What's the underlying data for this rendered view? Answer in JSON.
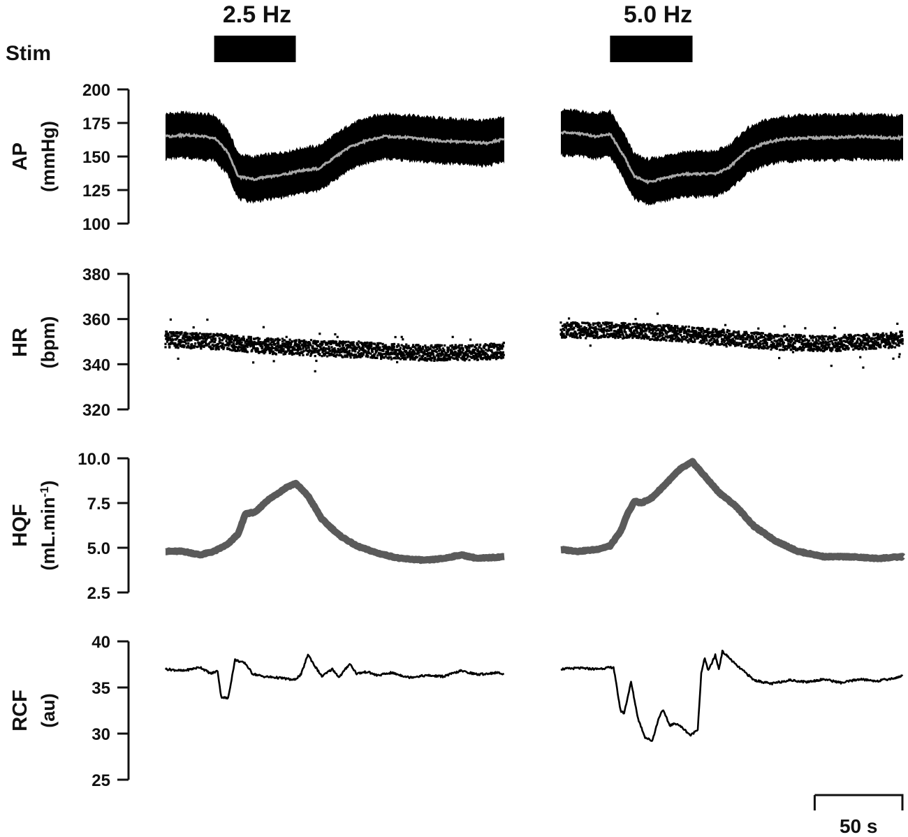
{
  "stim": {
    "label": "Stim",
    "conditions": [
      {
        "label": "2.5 Hz",
        "start_s": 28,
        "end_s": 75
      },
      {
        "label": "5.0 Hz",
        "start_s": 28,
        "end_s": 75
      }
    ]
  },
  "scale_bar": {
    "label": "50 s",
    "seconds": 50
  },
  "chart_data": {
    "type": "line",
    "x_unit": "s",
    "x_range": [
      0,
      195
    ],
    "panels": [
      {
        "id": "ap",
        "title": "AP",
        "unit": "(mmHg)",
        "ylim": [
          100,
          200
        ],
        "yticks": [
          100,
          125,
          150,
          175,
          200
        ],
        "tick_labels": [
          "100",
          "125",
          "150",
          "175",
          "200"
        ],
        "envelope_half_width": 17,
        "series": [
          {
            "condition": "2.5 Hz",
            "x": [
              0,
              12,
              20,
              28,
              36,
              42,
              50,
              60,
              70,
              80,
              88,
              96,
              106,
              116,
              126,
              140,
              155,
              170,
              185,
              195
            ],
            "y": [
              165,
              166,
              165,
              164,
              153,
              135,
              133,
              135,
              137,
              140,
              141,
              148,
              157,
              162,
              165,
              164,
              162,
              161,
              160,
              163
            ]
          },
          {
            "condition": "5.0 Hz",
            "x": [
              0,
              12,
              20,
              28,
              36,
              42,
              50,
              60,
              70,
              80,
              88,
              96,
              106,
              116,
              126,
              140,
              155,
              170,
              185,
              195
            ],
            "y": [
              168,
              167,
              165,
              167,
              150,
              135,
              131,
              134,
              137,
              137,
              137,
              142,
              154,
              160,
              163,
              164,
              164,
              165,
              164,
              164
            ]
          }
        ]
      },
      {
        "id": "hr",
        "title": "HR",
        "unit": "(bpm)",
        "ylim": [
          320,
          380
        ],
        "yticks": [
          320,
          340,
          360,
          380
        ],
        "tick_labels": [
          "320",
          "340",
          "360",
          "380"
        ],
        "series": [
          {
            "condition": "2.5 Hz",
            "x": [
              0,
              30,
              60,
              90,
              120,
              150,
              175,
              195
            ],
            "y": [
              351,
              350,
              348,
              347,
              346,
              345,
              345,
              346
            ]
          },
          {
            "condition": "5.0 Hz",
            "x": [
              0,
              30,
              60,
              90,
              120,
              150,
              175,
              195
            ],
            "y": [
              355,
              355,
              354,
              352,
              350,
              349,
              350,
              351
            ]
          }
        ]
      },
      {
        "id": "hqf",
        "title": "HQF",
        "unit": "(mL.min",
        "unit_sup": "-1",
        "unit_close": ")",
        "ylim": [
          2.5,
          10
        ],
        "yticks": [
          2.5,
          5.0,
          7.5,
          10.0
        ],
        "tick_labels": [
          "2.5",
          "5.0",
          "7.5",
          "10.0"
        ],
        "series": [
          {
            "condition": "2.5 Hz",
            "x": [
              0,
              10,
              20,
              28,
              36,
              42,
              46,
              52,
              58,
              64,
              70,
              75,
              82,
              90,
              100,
              110,
              122,
              135,
              150,
              160,
              170,
              180,
              195
            ],
            "y": [
              4.8,
              4.8,
              4.6,
              4.8,
              5.2,
              5.8,
              6.9,
              7.0,
              7.6,
              8.0,
              8.4,
              8.6,
              7.9,
              6.6,
              5.7,
              5.1,
              4.7,
              4.4,
              4.3,
              4.4,
              4.6,
              4.4,
              4.5
            ]
          },
          {
            "condition": "5.0 Hz",
            "x": [
              0,
              10,
              20,
              28,
              34,
              38,
              42,
              46,
              52,
              60,
              68,
              75,
              82,
              90,
              100,
              110,
              122,
              135,
              150,
              165,
              180,
              195
            ],
            "y": [
              4.9,
              4.8,
              4.9,
              5.1,
              5.9,
              6.9,
              7.6,
              7.5,
              7.8,
              8.6,
              9.4,
              9.8,
              9.0,
              8.1,
              7.3,
              6.2,
              5.4,
              4.8,
              4.5,
              4.5,
              4.4,
              4.5
            ]
          }
        ]
      },
      {
        "id": "rcf",
        "title": "RCF",
        "unit": "(au)",
        "ylim": [
          25,
          40
        ],
        "yticks": [
          25,
          30,
          35,
          40
        ],
        "tick_labels": [
          "25",
          "30",
          "35",
          "40"
        ],
        "series": [
          {
            "condition": "2.5 Hz",
            "x": [
              0,
              10,
              20,
              26,
              30,
              32,
              36,
              40,
              46,
              50,
              56,
              62,
              68,
              74,
              78,
              82,
              86,
              90,
              96,
              100,
              106,
              110,
              116,
              122,
              130,
              140,
              150,
              160,
              170,
              180,
              190,
              195
            ],
            "y": [
              37.0,
              36.8,
              37.2,
              36.5,
              36.8,
              34.0,
              33.8,
              38.0,
              37.6,
              36.5,
              36.2,
              36.1,
              36.0,
              35.8,
              36.4,
              38.6,
              37.3,
              36.2,
              37.0,
              36.1,
              37.6,
              36.5,
              36.7,
              36.3,
              36.6,
              36.1,
              36.3,
              36.2,
              36.8,
              36.4,
              36.6,
              36.5
            ]
          },
          {
            "condition": "5.0 Hz",
            "x": [
              0,
              10,
              20,
              30,
              34,
              36,
              40,
              44,
              48,
              52,
              56,
              58,
              62,
              66,
              70,
              74,
              78,
              80,
              82,
              84,
              88,
              90,
              92,
              96,
              100,
              104,
              110,
              120,
              130,
              140,
              150,
              160,
              170,
              180,
              190,
              195
            ],
            "y": [
              37.0,
              37.1,
              37.0,
              37.2,
              32.5,
              32.2,
              35.6,
              31.6,
              29.6,
              29.2,
              31.8,
              32.6,
              30.9,
              31.1,
              30.5,
              29.8,
              30.5,
              36.5,
              38.2,
              36.8,
              38.5,
              37.0,
              38.9,
              38.2,
              37.4,
              36.8,
              35.8,
              35.4,
              35.8,
              35.6,
              35.9,
              35.5,
              35.9,
              35.7,
              36.0,
              36.3
            ]
          }
        ]
      }
    ]
  }
}
